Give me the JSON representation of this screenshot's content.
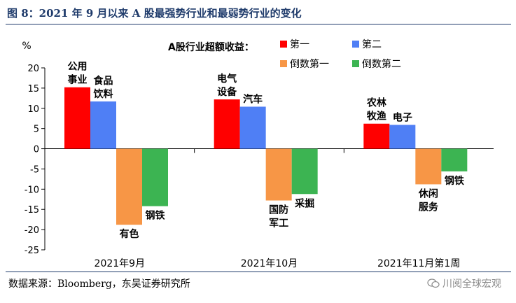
{
  "title": "图 8：2021 年 9 月以来 A 股最强势行业和最弱势行业的变化",
  "source": "数据来源：Bloomberg，东吴证券研究所",
  "watermark": "川阅全球宏观",
  "watermark_icon": "wechat-icon",
  "chart_data": {
    "type": "bar",
    "title": "",
    "ylabel": "%",
    "ylim": [
      -25,
      20
    ],
    "yticks": [
      20,
      15,
      10,
      5,
      0,
      -5,
      -10,
      -15,
      -20,
      -25
    ],
    "legend": {
      "placement": "top-right",
      "title": "A股行业超额收益：",
      "entries": [
        "第一",
        "第二",
        "倒数第一",
        "倒数第二"
      ]
    },
    "categories": [
      "2021年9月",
      "2021年10月",
      "2021年11月第1周"
    ],
    "series": [
      {
        "name": "第一",
        "color": "#ff0000",
        "values": [
          15.2,
          12.2,
          6.2
        ],
        "labels": [
          [
            "公用",
            "事业"
          ],
          [
            "电气",
            "设备"
          ],
          [
            "农林",
            "牧渔"
          ]
        ]
      },
      {
        "name": "第二",
        "color": "#4f7ff5",
        "values": [
          11.7,
          10.4,
          5.9
        ],
        "labels": [
          [
            "食品",
            "饮料"
          ],
          [
            "汽车"
          ],
          [
            "电子"
          ]
        ]
      },
      {
        "name": "倒数第一",
        "color": "#f79646",
        "values": [
          -18.8,
          -12.8,
          -8.8
        ],
        "labels": [
          [
            "有色"
          ],
          [
            "国防",
            "军工"
          ],
          [
            "休闲",
            "服务"
          ]
        ]
      },
      {
        "name": "倒数第二",
        "color": "#3cb452",
        "values": [
          -14.2,
          -11.2,
          -5.6
        ],
        "labels": [
          [
            "钢铁"
          ],
          [
            "采掘"
          ],
          [
            "钢铁"
          ]
        ]
      }
    ]
  }
}
